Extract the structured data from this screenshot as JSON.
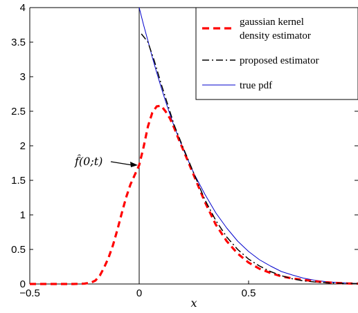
{
  "chart_data": {
    "type": "line",
    "xlabel": "x",
    "ylabel": "",
    "xlim": [
      -0.5,
      1.0
    ],
    "ylim": [
      0,
      4
    ],
    "x_ticks": [
      -0.5,
      0,
      0.5
    ],
    "x_tick_labels": [
      "−0.5",
      "0",
      "0.5"
    ],
    "y_ticks": [
      0,
      0.5,
      1,
      1.5,
      2,
      2.5,
      3,
      3.5,
      4
    ],
    "y_tick_labels": [
      "0",
      "0.5",
      "1",
      "1.5",
      "2",
      "2.5",
      "3",
      "3.5",
      "4"
    ],
    "vertical_line_x": 0,
    "grid": false,
    "legend_position": "top-right",
    "annotation": {
      "text": "f̂(0;t)",
      "target": [
        0,
        1.72
      ]
    },
    "series": [
      {
        "name": "gaussian kernel density estimator",
        "style": "dashed",
        "color": "#ff0000",
        "x": [
          -0.5,
          -0.45,
          -0.4,
          -0.35,
          -0.3,
          -0.25,
          -0.22,
          -0.2,
          -0.18,
          -0.16,
          -0.14,
          -0.12,
          -0.1,
          -0.08,
          -0.06,
          -0.04,
          -0.02,
          0,
          0.02,
          0.04,
          0.06,
          0.08,
          0.1,
          0.12,
          0.14,
          0.16,
          0.18,
          0.2,
          0.22,
          0.25,
          0.3,
          0.35,
          0.4,
          0.45,
          0.5,
          0.55,
          0.6,
          0.65,
          0.7,
          0.75,
          0.8,
          0.85,
          0.9,
          0.95,
          1.0
        ],
        "y": [
          0,
          0,
          0,
          0,
          0,
          0.005,
          0.02,
          0.05,
          0.12,
          0.24,
          0.38,
          0.56,
          0.78,
          1.02,
          1.25,
          1.44,
          1.58,
          1.72,
          1.98,
          2.28,
          2.48,
          2.57,
          2.58,
          2.5,
          2.4,
          2.26,
          2.1,
          1.95,
          1.8,
          1.57,
          1.19,
          0.86,
          0.62,
          0.44,
          0.31,
          0.22,
          0.16,
          0.11,
          0.08,
          0.06,
          0.04,
          0.025,
          0.015,
          0.008,
          0.005
        ]
      },
      {
        "name": "proposed estimator",
        "style": "dashdot",
        "color": "#000000",
        "x": [
          0.01,
          0.04,
          0.07,
          0.1,
          0.13,
          0.16,
          0.2,
          0.25,
          0.3,
          0.35,
          0.4,
          0.45,
          0.5,
          0.55,
          0.6,
          0.65,
          0.7,
          0.75,
          0.8,
          0.85,
          0.9,
          0.95,
          1.0
        ],
        "y": [
          3.62,
          3.5,
          3.22,
          2.9,
          2.6,
          2.3,
          1.98,
          1.6,
          1.22,
          0.92,
          0.68,
          0.5,
          0.36,
          0.26,
          0.18,
          0.12,
          0.075,
          0.045,
          0.03,
          0.02,
          0.012,
          0.008,
          0.005
        ]
      },
      {
        "name": "true pdf",
        "style": "solid",
        "color": "#0000cc",
        "x": [
          0,
          0.02,
          0.04,
          0.06,
          0.08,
          0.1,
          0.12,
          0.14,
          0.16,
          0.18,
          0.2,
          0.25,
          0.3,
          0.35,
          0.4,
          0.45,
          0.5,
          0.55,
          0.6,
          0.65,
          0.7,
          0.75,
          0.8,
          0.85,
          0.9,
          0.95,
          1.0
        ],
        "y": [
          4.0,
          3.75,
          3.52,
          3.28,
          3.06,
          2.85,
          2.65,
          2.46,
          2.28,
          2.12,
          1.96,
          1.6,
          1.3,
          1.03,
          0.81,
          0.62,
          0.47,
          0.35,
          0.26,
          0.18,
          0.13,
          0.085,
          0.055,
          0.035,
          0.022,
          0.012,
          0.006
        ]
      }
    ],
    "legend": [
      {
        "lines": [
          "gaussian kernel",
          "density estimator"
        ],
        "style": "dashed",
        "color": "#ff0000"
      },
      {
        "lines": [
          "proposed estimator"
        ],
        "style": "dashdot",
        "color": "#000000"
      },
      {
        "lines": [
          "true pdf"
        ],
        "style": "solid",
        "color": "#0000cc"
      }
    ]
  }
}
